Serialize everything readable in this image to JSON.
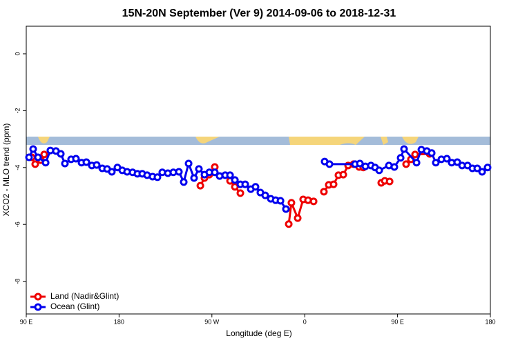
{
  "chart_data": {
    "type": "line",
    "title": "15N-20N September (Ver 9)   2014-09-06 to 2018-12-31",
    "x_label": "Longitude (deg E)",
    "y_label": "XCO2 - MLO trend (ppm)",
    "xlim": [
      90,
      540
    ],
    "ylim": [
      -9.15,
      0.97
    ],
    "xticks": [
      {
        "value": 90,
        "label": "90 E"
      },
      180,
      {
        "value": 270,
        "label": "90 W"
      },
      {
        "value": 360,
        "label": "0"
      },
      {
        "value": 450,
        "label": "90 E"
      },
      {
        "value": 540,
        "label": "180"
      }
    ],
    "yticks": [
      0,
      -2,
      -4,
      -6,
      -8
    ],
    "legend": "bottomleft",
    "series": [
      {
        "name": "Land (Nadir&Glint)",
        "color": "#ee0000",
        "x": [
          95.4,
          98.7,
          104.1,
          107.4,
          null,
          258.8,
          262.8,
          267.5,
          272.8,
          null,
          287.6,
          292.3,
          297.6,
          null,
          344.5,
          347.1,
          353.2,
          358.5,
          363.2,
          368.6,
          null,
          378.6,
          383.3,
          388.0,
          392.7,
          397.4,
          402.1,
          407.4,
          412.8,
          416.8,
          null,
          434.2,
          437.6,
          442.3,
          null,
          458.3,
          463.0,
          467.0,
          481.1
        ],
        "values": [
          -3.64,
          -3.88,
          -3.74,
          -3.54,
          null,
          -4.64,
          -4.37,
          -4.25,
          -3.98,
          null,
          -4.47,
          -4.68,
          -4.9,
          null,
          -5.99,
          -5.24,
          -5.78,
          -5.12,
          -5.15,
          -5.19,
          null,
          -4.85,
          -4.61,
          -4.59,
          -4.27,
          -4.25,
          -3.93,
          -3.88,
          -3.98,
          -4.0,
          null,
          -4.54,
          -4.47,
          -4.49,
          null,
          -3.88,
          -3.71,
          -3.54,
          -3.52
        ]
      },
      {
        "name": "Ocean (Glint)",
        "color": "#0000ee",
        "x": [
          92.7,
          96.7,
          101.4,
          108.8,
          113.4,
          118.8,
          123.5,
          127.5,
          133.5,
          138.2,
          143.6,
          148.3,
          153.6,
          158.3,
          163.7,
          168.4,
          173.0,
          178.4,
          183.1,
          187.8,
          193.1,
          197.8,
          202.5,
          207.2,
          212.5,
          217.2,
          221.9,
          227.3,
          232.6,
          238.0,
          242.7,
          247.4,
          252.7,
          257.4,
          262.8,
          267.5,
          272.8,
          277.5,
          282.9,
          287.6,
          292.3,
          297.6,
          302.3,
          307.7,
          312.3,
          317.0,
          321.7,
          327.1,
          331.8,
          336.5,
          341.8,
          null,
          379.3,
          384.0,
          408.8,
          413.5,
          418.8,
          424.2,
          428.2,
          432.2,
          441.6,
          446.9,
          453.0,
          456.3,
          468.4,
          473.1,
          478.4,
          483.1,
          487.1,
          492.5,
          497.8,
          502.5,
          507.9,
          512.6,
          517.9,
          522.6,
          527.3,
          532.0,
          537.3
        ],
        "values": [
          -3.64,
          -3.35,
          -3.64,
          -3.83,
          -3.4,
          -3.42,
          -3.52,
          -3.86,
          -3.71,
          -3.69,
          -3.83,
          -3.81,
          -3.93,
          -3.91,
          -4.03,
          -4.05,
          -4.15,
          -4.0,
          -4.1,
          -4.15,
          -4.17,
          -4.22,
          -4.22,
          -4.27,
          -4.32,
          -4.34,
          -4.17,
          -4.2,
          -4.17,
          -4.15,
          -4.51,
          -3.86,
          -4.37,
          -4.05,
          -4.25,
          -4.17,
          -4.17,
          -4.3,
          -4.27,
          -4.27,
          -4.44,
          -4.59,
          -4.59,
          -4.76,
          -4.68,
          -4.88,
          -4.98,
          -5.1,
          -5.15,
          -5.17,
          -5.46,
          null,
          -3.79,
          -3.88,
          -3.88,
          -3.86,
          -3.96,
          -3.93,
          -4.0,
          -4.1,
          -3.93,
          -3.98,
          -3.66,
          -3.35,
          -3.83,
          -3.37,
          -3.42,
          -3.49,
          -3.83,
          -3.71,
          -3.69,
          -3.83,
          -3.81,
          -3.93,
          -3.93,
          -4.03,
          -4.03,
          -4.15,
          -4.0
        ]
      }
    ]
  }
}
